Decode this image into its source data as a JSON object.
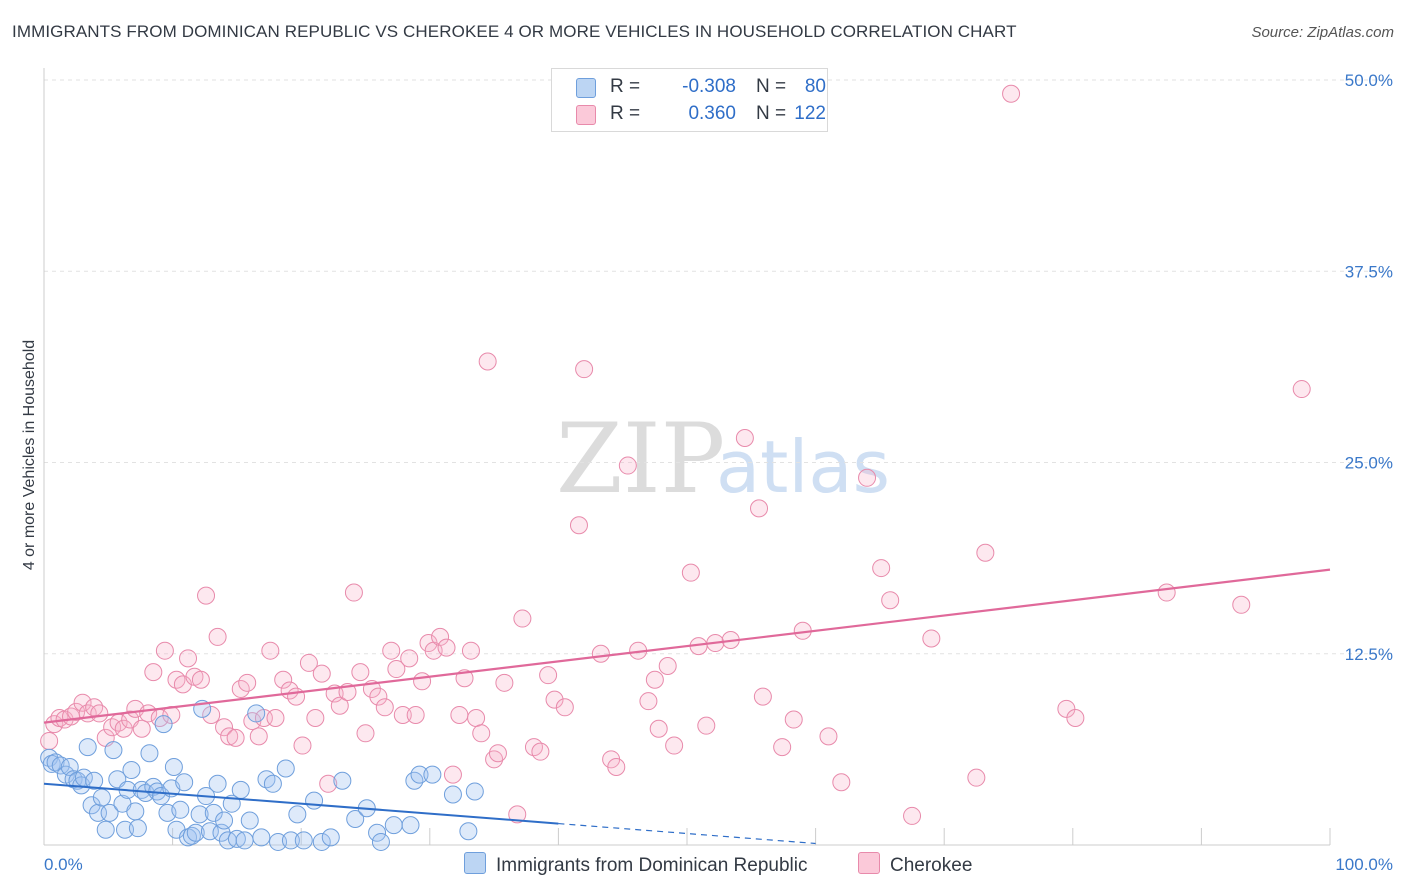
{
  "title": "IMMIGRANTS FROM DOMINICAN REPUBLIC VS CHEROKEE 4 OR MORE VEHICLES IN HOUSEHOLD CORRELATION CHART",
  "source": "Source: ZipAtlas.com",
  "watermark": {
    "zip": "ZIP",
    "atlas": "atlas"
  },
  "legend": {
    "rows": [
      {
        "r_label": "R =",
        "r_value": "-0.308",
        "n_label": "N =",
        "n_value": "80",
        "color": "#a9c8f0",
        "border": "#6f9fdc"
      },
      {
        "r_label": "R =",
        "r_value": "0.360",
        "n_label": "N =",
        "n_value": "122",
        "color": "#f7bcd0",
        "border": "#e88aab"
      }
    ]
  },
  "bottom_legend": [
    {
      "label": "Immigrants from Dominican Republic",
      "color": "#bcd5f3",
      "border": "#6f9fdc"
    },
    {
      "label": "Cherokee",
      "color": "#fbc9d9",
      "border": "#e88aab"
    }
  ],
  "chart_data": {
    "type": "scatter",
    "title": "IMMIGRANTS FROM DOMINICAN REPUBLIC VS CHEROKEE 4 OR MORE VEHICLES IN HOUSEHOLD CORRELATION CHART",
    "xlabel": "",
    "ylabel": "4 or more Vehicles in Household",
    "xlim": [
      0,
      100
    ],
    "ylim": [
      0,
      50
    ],
    "x_tick_labels": [
      "0.0%",
      "100.0%"
    ],
    "y_ticks": [
      12.5,
      25.0,
      37.5,
      50.0
    ],
    "y_tick_labels": [
      "12.5%",
      "25.0%",
      "37.5%",
      "50.0%"
    ],
    "grid": true,
    "legend_position": "top-center",
    "colors": {
      "blue": "#6f9fdc",
      "blue_line": "#2f6ec8",
      "pink": "#e88aab",
      "pink_line": "#e0699a",
      "tick_text": "#3a78c9"
    },
    "series": [
      {
        "name": "Immigrants from Dominican Republic",
        "color": "#6f9fdc",
        "trend": {
          "x0": 0,
          "y0": 4.0,
          "x1": 40,
          "y1": 1.4,
          "dashed_to_x": 60,
          "dashed_to_y": 0.1
        },
        "points": [
          [
            0.4,
            5.7
          ],
          [
            0.6,
            5.3
          ],
          [
            0.9,
            5.4
          ],
          [
            1.3,
            5.2
          ],
          [
            1.7,
            4.6
          ],
          [
            2.0,
            5.1
          ],
          [
            2.3,
            4.3
          ],
          [
            2.6,
            4.2
          ],
          [
            2.9,
            3.9
          ],
          [
            3.1,
            4.4
          ],
          [
            3.4,
            6.4
          ],
          [
            3.7,
            2.6
          ],
          [
            3.9,
            4.2
          ],
          [
            4.2,
            2.1
          ],
          [
            4.5,
            3.1
          ],
          [
            4.8,
            1.0
          ],
          [
            5.1,
            2.1
          ],
          [
            5.4,
            6.2
          ],
          [
            5.7,
            4.3
          ],
          [
            6.1,
            2.7
          ],
          [
            6.3,
            1.0
          ],
          [
            6.5,
            3.6
          ],
          [
            6.8,
            4.9
          ],
          [
            7.1,
            2.2
          ],
          [
            7.3,
            1.1
          ],
          [
            7.6,
            3.6
          ],
          [
            7.9,
            3.4
          ],
          [
            8.2,
            6.0
          ],
          [
            8.5,
            3.8
          ],
          [
            8.8,
            3.5
          ],
          [
            9.1,
            3.2
          ],
          [
            9.3,
            7.9
          ],
          [
            9.6,
            2.1
          ],
          [
            9.9,
            3.7
          ],
          [
            10.1,
            5.1
          ],
          [
            10.3,
            1.0
          ],
          [
            10.6,
            2.3
          ],
          [
            10.9,
            4.1
          ],
          [
            11.2,
            0.5
          ],
          [
            11.5,
            0.6
          ],
          [
            11.8,
            0.8
          ],
          [
            12.1,
            2.0
          ],
          [
            12.3,
            8.9
          ],
          [
            12.6,
            3.2
          ],
          [
            12.9,
            0.9
          ],
          [
            13.2,
            2.1
          ],
          [
            13.5,
            4.0
          ],
          [
            13.8,
            0.8
          ],
          [
            14.0,
            1.6
          ],
          [
            14.3,
            0.3
          ],
          [
            14.6,
            2.7
          ],
          [
            15.0,
            0.4
          ],
          [
            15.3,
            3.6
          ],
          [
            15.6,
            0.3
          ],
          [
            16.0,
            1.6
          ],
          [
            16.5,
            8.6
          ],
          [
            16.9,
            0.5
          ],
          [
            17.3,
            4.3
          ],
          [
            17.8,
            4.0
          ],
          [
            18.2,
            0.2
          ],
          [
            18.8,
            5.0
          ],
          [
            19.2,
            0.3
          ],
          [
            19.7,
            2.0
          ],
          [
            20.2,
            0.3
          ],
          [
            21.0,
            2.9
          ],
          [
            21.6,
            0.2
          ],
          [
            22.3,
            0.5
          ],
          [
            23.2,
            4.2
          ],
          [
            24.2,
            1.7
          ],
          [
            25.1,
            2.4
          ],
          [
            25.9,
            0.8
          ],
          [
            26.2,
            0.2
          ],
          [
            27.2,
            1.3
          ],
          [
            28.5,
            1.3
          ],
          [
            28.8,
            4.2
          ],
          [
            29.2,
            4.6
          ],
          [
            30.2,
            4.6
          ],
          [
            31.8,
            3.3
          ],
          [
            33.0,
            0.9
          ],
          [
            33.5,
            3.5
          ]
        ]
      },
      {
        "name": "Cherokee",
        "color": "#e88aab",
        "trend": {
          "x0": 0,
          "y0": 8.0,
          "x1": 100,
          "y1": 18.0
        },
        "points": [
          [
            0.4,
            6.8
          ],
          [
            0.8,
            7.9
          ],
          [
            1.2,
            8.3
          ],
          [
            1.6,
            8.2
          ],
          [
            2.1,
            8.4
          ],
          [
            2.5,
            8.7
          ],
          [
            3.0,
            9.3
          ],
          [
            3.4,
            8.6
          ],
          [
            3.9,
            9.0
          ],
          [
            4.3,
            8.6
          ],
          [
            4.8,
            7.0
          ],
          [
            5.3,
            7.7
          ],
          [
            5.8,
            8.0
          ],
          [
            6.2,
            7.6
          ],
          [
            6.7,
            8.2
          ],
          [
            7.1,
            8.9
          ],
          [
            7.6,
            7.6
          ],
          [
            8.1,
            8.6
          ],
          [
            8.5,
            11.3
          ],
          [
            9.0,
            8.3
          ],
          [
            9.4,
            12.7
          ],
          [
            9.9,
            8.5
          ],
          [
            10.3,
            10.8
          ],
          [
            10.8,
            10.5
          ],
          [
            11.2,
            12.2
          ],
          [
            11.7,
            11.0
          ],
          [
            12.2,
            10.8
          ],
          [
            12.6,
            16.3
          ],
          [
            13.0,
            8.5
          ],
          [
            13.5,
            13.6
          ],
          [
            14.0,
            7.7
          ],
          [
            14.4,
            7.1
          ],
          [
            14.9,
            7.0
          ],
          [
            15.3,
            10.2
          ],
          [
            15.8,
            10.6
          ],
          [
            16.2,
            8.1
          ],
          [
            16.7,
            7.1
          ],
          [
            17.1,
            8.3
          ],
          [
            17.6,
            12.7
          ],
          [
            18.0,
            8.3
          ],
          [
            18.6,
            10.8
          ],
          [
            19.1,
            10.1
          ],
          [
            19.6,
            9.7
          ],
          [
            20.1,
            6.5
          ],
          [
            20.6,
            11.9
          ],
          [
            21.1,
            8.3
          ],
          [
            21.6,
            11.2
          ],
          [
            22.1,
            4.0
          ],
          [
            22.6,
            9.9
          ],
          [
            23.0,
            9.1
          ],
          [
            23.6,
            10.0
          ],
          [
            24.1,
            16.5
          ],
          [
            24.6,
            11.3
          ],
          [
            25.0,
            7.3
          ],
          [
            25.5,
            10.2
          ],
          [
            26.0,
            9.7
          ],
          [
            26.5,
            9.0
          ],
          [
            27.0,
            12.7
          ],
          [
            27.4,
            11.5
          ],
          [
            27.9,
            8.5
          ],
          [
            28.4,
            12.2
          ],
          [
            28.9,
            8.5
          ],
          [
            29.4,
            10.7
          ],
          [
            29.9,
            13.2
          ],
          [
            30.3,
            12.7
          ],
          [
            30.8,
            13.6
          ],
          [
            31.3,
            12.9
          ],
          [
            31.8,
            4.6
          ],
          [
            32.3,
            8.5
          ],
          [
            32.7,
            10.9
          ],
          [
            33.2,
            12.7
          ],
          [
            33.6,
            8.3
          ],
          [
            34.0,
            7.3
          ],
          [
            34.5,
            31.6
          ],
          [
            35.0,
            5.6
          ],
          [
            35.3,
            6.0
          ],
          [
            35.8,
            10.6
          ],
          [
            36.8,
            2.0
          ],
          [
            37.2,
            14.8
          ],
          [
            38.1,
            6.4
          ],
          [
            38.6,
            6.1
          ],
          [
            39.2,
            11.1
          ],
          [
            39.7,
            9.5
          ],
          [
            40.5,
            9.0
          ],
          [
            41.6,
            20.9
          ],
          [
            42.0,
            31.1
          ],
          [
            43.3,
            12.5
          ],
          [
            44.1,
            5.6
          ],
          [
            44.5,
            5.1
          ],
          [
            45.4,
            24.8
          ],
          [
            46.2,
            12.7
          ],
          [
            47.0,
            9.4
          ],
          [
            47.5,
            10.8
          ],
          [
            47.8,
            7.6
          ],
          [
            48.5,
            11.7
          ],
          [
            49.0,
            6.5
          ],
          [
            50.3,
            17.8
          ],
          [
            50.9,
            13.0
          ],
          [
            51.5,
            7.8
          ],
          [
            52.2,
            13.2
          ],
          [
            53.4,
            13.4
          ],
          [
            54.5,
            26.6
          ],
          [
            55.6,
            22.0
          ],
          [
            55.9,
            9.7
          ],
          [
            57.4,
            6.4
          ],
          [
            58.3,
            8.2
          ],
          [
            59.0,
            14.0
          ],
          [
            61.0,
            7.1
          ],
          [
            62.0,
            4.1
          ],
          [
            64.0,
            24.0
          ],
          [
            65.1,
            18.1
          ],
          [
            65.8,
            16.0
          ],
          [
            67.5,
            1.9
          ],
          [
            69.0,
            13.5
          ],
          [
            72.5,
            4.4
          ],
          [
            73.2,
            19.1
          ],
          [
            79.5,
            8.9
          ],
          [
            80.2,
            8.3
          ],
          [
            87.3,
            16.5
          ],
          [
            93.1,
            15.7
          ],
          [
            75.2,
            49.1
          ],
          [
            97.8,
            29.8
          ]
        ]
      }
    ]
  }
}
